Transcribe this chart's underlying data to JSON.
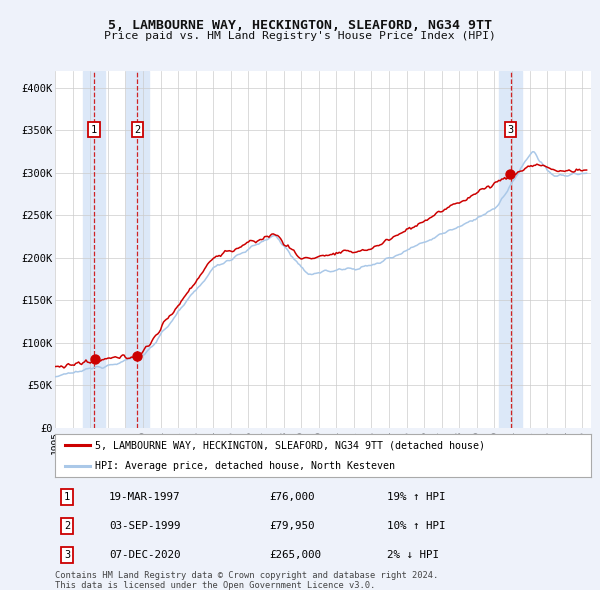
{
  "title1": "5, LAMBOURNE WAY, HECKINGTON, SLEAFORD, NG34 9TT",
  "title2": "Price paid vs. HM Land Registry's House Price Index (HPI)",
  "legend_label_red": "5, LAMBOURNE WAY, HECKINGTON, SLEAFORD, NG34 9TT (detached house)",
  "legend_label_blue": "HPI: Average price, detached house, North Kesteven",
  "footer1": "Contains HM Land Registry data © Crown copyright and database right 2024.",
  "footer2": "This data is licensed under the Open Government Licence v3.0.",
  "sales": [
    {
      "num": 1,
      "date": "19-MAR-1997",
      "year": 1997.21,
      "price": 76000,
      "pct": "19%",
      "dir": "↑"
    },
    {
      "num": 2,
      "date": "03-SEP-1999",
      "year": 1999.67,
      "price": 79950,
      "pct": "10%",
      "dir": "↑"
    },
    {
      "num": 3,
      "date": "07-DEC-2020",
      "year": 2020.93,
      "price": 265000,
      "pct": "2%",
      "dir": "↓"
    }
  ],
  "ylim": [
    0,
    420000
  ],
  "xlim_start": 1995.0,
  "xlim_end": 2025.5,
  "yticks": [
    0,
    50000,
    100000,
    150000,
    200000,
    250000,
    300000,
    350000,
    400000
  ],
  "ytick_labels": [
    "£0",
    "£50K",
    "£100K",
    "£150K",
    "£200K",
    "£250K",
    "£300K",
    "£350K",
    "£400K"
  ],
  "bg_color": "#eef2fa",
  "plot_bg": "#ffffff",
  "red_color": "#cc0000",
  "blue_color": "#aac8e8",
  "grid_color": "#cccccc",
  "shade_color": "#dce8f8"
}
